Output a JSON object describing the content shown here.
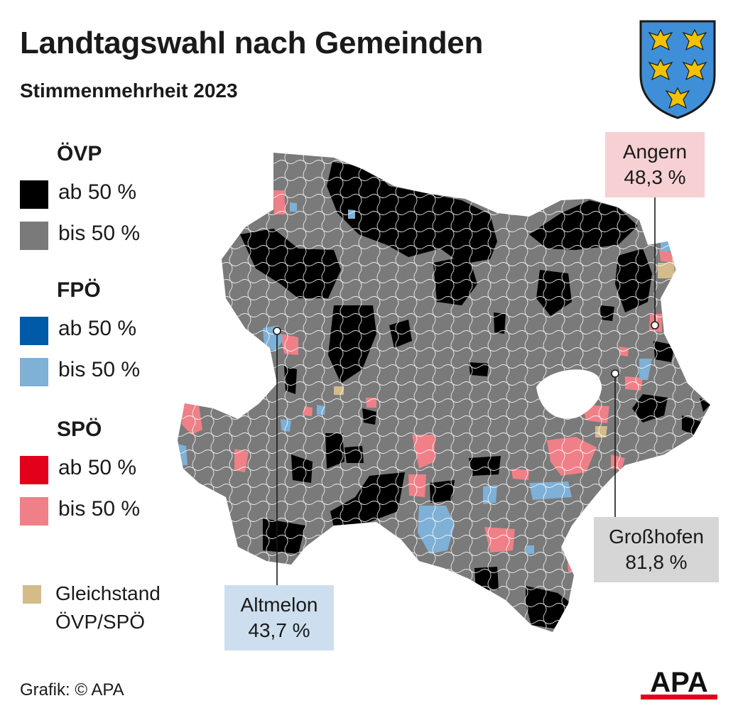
{
  "title": "Landtagswahl nach Gemeinden",
  "subtitle": "Stimmenmehrheit 2023",
  "legend": {
    "groups": [
      {
        "party": "ÖVP",
        "items": [
          {
            "label": "ab 50 %",
            "color": "#000000"
          },
          {
            "label": "bis 50 %",
            "color": "#7a7a7a"
          }
        ]
      },
      {
        "party": "FPÖ",
        "items": [
          {
            "label": "ab 50 %",
            "color": "#005aa7"
          },
          {
            "label": "bis 50 %",
            "color": "#7fb0d6"
          }
        ]
      },
      {
        "party": "SPÖ",
        "items": [
          {
            "label": "ab 50 %",
            "color": "#e2001a"
          },
          {
            "label": "bis 50 %",
            "color": "#ef8088"
          }
        ]
      }
    ],
    "tie": {
      "label_line1": "Gleichstand",
      "label_line2": "ÖVP/SPÖ",
      "color": "#d3bb8a"
    }
  },
  "callouts": {
    "angern": {
      "name": "Angern",
      "value": "48,3 %"
    },
    "grosshofen": {
      "name": "Großhofen",
      "value": "81,8 %"
    },
    "altmelon": {
      "name": "Altmelon",
      "value": "43,7 %"
    }
  },
  "credit": "Grafik: © APA",
  "logo_text": "APA",
  "colors": {
    "map_gray": "#7a7a7a",
    "map_black": "#000000",
    "map_pink": "#ef8088",
    "map_lightblue": "#7fb0d6",
    "map_tan": "#d3bb8a",
    "apa_red": "#e2001a",
    "coat_blue": "#3e8fd8",
    "coat_gold": "#f2c200"
  }
}
